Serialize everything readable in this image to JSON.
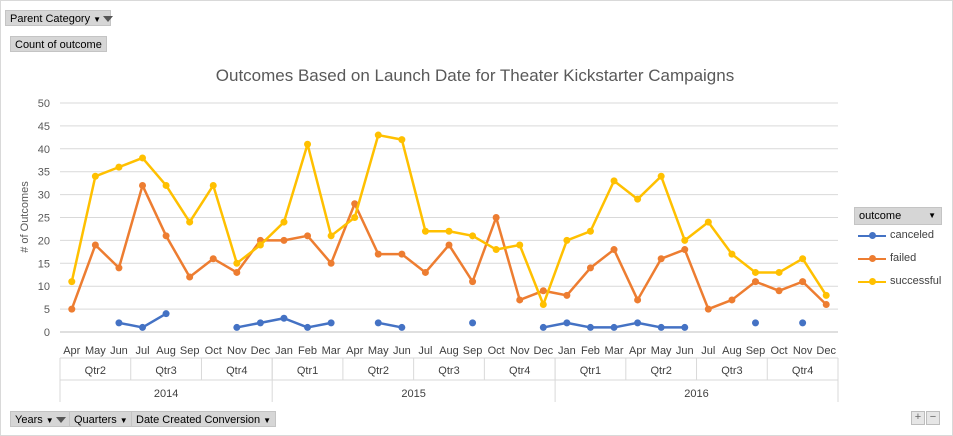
{
  "filters": {
    "parent_category": "Parent Category",
    "count_of_outcome": "Count of outcome",
    "years": "Years",
    "quarters": "Quarters",
    "date_created": "Date Created Conversion"
  },
  "legend": {
    "title": "outcome"
  },
  "colors": {
    "canceled": "#4472c4",
    "failed": "#ed7d31",
    "successful": "#ffc000"
  },
  "chart_data": {
    "type": "line",
    "title": "Outcomes Based on Launch Date for Theater Kickstarter Campaigns",
    "xlabel": "",
    "ylabel": "# of Outcomes",
    "ylim": [
      0,
      50
    ],
    "yticks": [
      0,
      5,
      10,
      15,
      20,
      25,
      30,
      35,
      40,
      45,
      50
    ],
    "grid": true,
    "legend_position": "right",
    "categories": [
      "Apr",
      "May",
      "Jun",
      "Jul",
      "Aug",
      "Sep",
      "Oct",
      "Nov",
      "Dec",
      "Jan",
      "Feb",
      "Mar",
      "Apr",
      "May",
      "Jun",
      "Jul",
      "Aug",
      "Sep",
      "Oct",
      "Nov",
      "Dec",
      "Jan",
      "Feb",
      "Mar",
      "Apr",
      "May",
      "Jun",
      "Jul",
      "Aug",
      "Sep",
      "Oct",
      "Nov",
      "Dec"
    ],
    "quarters": [
      {
        "label": "Qtr2",
        "span": 3
      },
      {
        "label": "Qtr3",
        "span": 3
      },
      {
        "label": "Qtr4",
        "span": 3
      },
      {
        "label": "Qtr1",
        "span": 3
      },
      {
        "label": "Qtr2",
        "span": 3
      },
      {
        "label": "Qtr3",
        "span": 3
      },
      {
        "label": "Qtr4",
        "span": 3
      },
      {
        "label": "Qtr1",
        "span": 3
      },
      {
        "label": "Qtr2",
        "span": 3
      },
      {
        "label": "Qtr3",
        "span": 3
      },
      {
        "label": "Qtr4",
        "span": 3
      }
    ],
    "years": [
      {
        "label": "2014",
        "span": 9
      },
      {
        "label": "2015",
        "span": 12
      },
      {
        "label": "2016",
        "span": 12
      }
    ],
    "series": [
      {
        "name": "canceled",
        "values": [
          null,
          null,
          2,
          1,
          4,
          null,
          null,
          1,
          2,
          3,
          1,
          2,
          null,
          2,
          1,
          null,
          null,
          2,
          null,
          null,
          1,
          2,
          1,
          1,
          2,
          1,
          1,
          null,
          null,
          2,
          null,
          2,
          null
        ]
      },
      {
        "name": "failed",
        "values": [
          5,
          19,
          14,
          32,
          21,
          12,
          16,
          13,
          20,
          20,
          21,
          15,
          28,
          17,
          17,
          13,
          19,
          11,
          25,
          7,
          9,
          8,
          14,
          18,
          7,
          16,
          18,
          5,
          7,
          11,
          9,
          11,
          6
        ]
      },
      {
        "name": "successful",
        "values": [
          11,
          34,
          36,
          38,
          32,
          24,
          32,
          15,
          19,
          24,
          41,
          21,
          25,
          43,
          42,
          22,
          22,
          21,
          18,
          19,
          6,
          20,
          22,
          33,
          29,
          34,
          20,
          24,
          17,
          13,
          13,
          16,
          8
        ]
      }
    ]
  }
}
